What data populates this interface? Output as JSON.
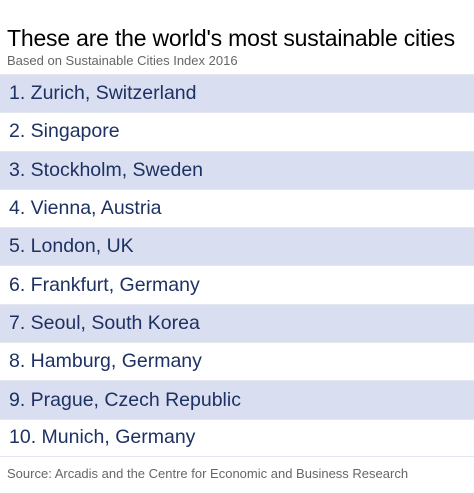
{
  "header": {
    "title": "These are the world's most sustainable cities",
    "subtitle": "Based on Sustainable Cities Index 2016"
  },
  "chart_data": {
    "type": "table",
    "title": "These are the world's most sustainable cities",
    "subtitle": "Based on Sustainable Cities Index 2016",
    "rows": [
      "1. Zurich, Switzerland",
      "2. Singapore",
      "3. Stockholm, Sweden",
      "4. Vienna, Austria",
      "5. London, UK",
      "6. Frankfurt, Germany",
      "7. Seoul, South Korea",
      "8. Hamburg, Germany",
      "9. Prague, Czech Republic",
      "10. Munich, Germany"
    ],
    "source": "Source: Arcadis and the Centre for Economic and Business Research"
  },
  "footer": {
    "source": "Source: Arcadis and the Centre for Economic and Business Research"
  },
  "colors": {
    "shaded_row": "#d9dff0",
    "plain_row": "#ffffff",
    "row_text": "#1e3163",
    "muted_text": "#666666"
  }
}
